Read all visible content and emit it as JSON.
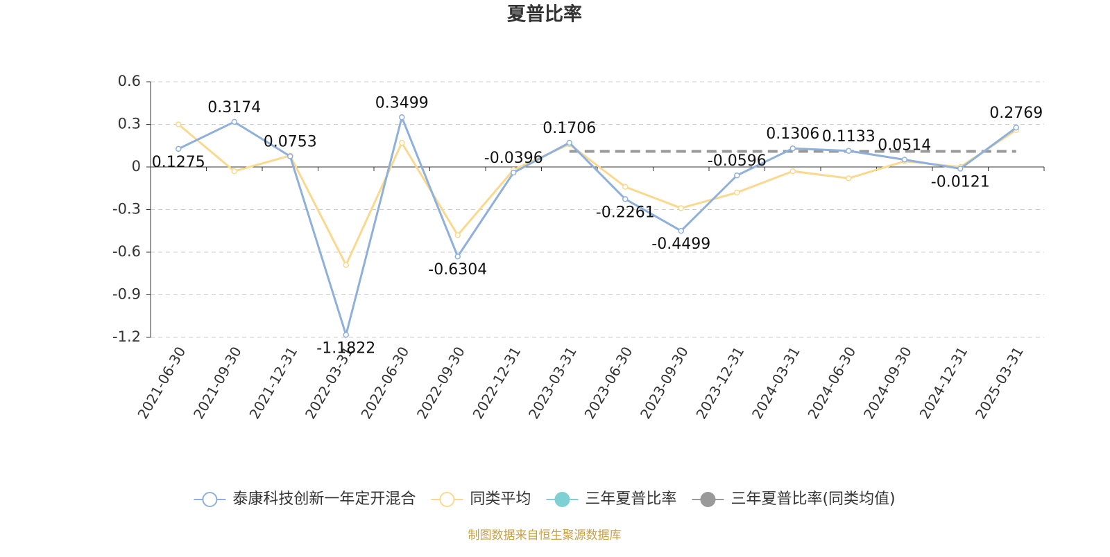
{
  "chart_data": {
    "type": "line",
    "title": "夏普比率",
    "categories": [
      "2021-06-30",
      "2021-09-30",
      "2021-12-31",
      "2022-03-31",
      "2022-06-30",
      "2022-09-30",
      "2022-12-31",
      "2023-03-31",
      "2023-06-30",
      "2023-09-30",
      "2023-12-31",
      "2024-03-31",
      "2024-06-30",
      "2024-09-30",
      "2024-12-31",
      "2025-03-31"
    ],
    "series": [
      {
        "name": "泰康科技创新一年定开混合",
        "color": "#8eb0db",
        "symbol": "emptyCircle",
        "data_labels": true,
        "values": [
          0.1275,
          0.3174,
          0.0753,
          -1.1822,
          0.3499,
          -0.6304,
          -0.0396,
          0.1706,
          -0.2261,
          -0.4499,
          -0.0596,
          0.1306,
          0.1133,
          0.0514,
          -0.0121,
          0.2769
        ]
      },
      {
        "name": "同类平均",
        "color": "#fad98f",
        "symbol": "emptyCircle",
        "values": [
          0.3,
          -0.03,
          0.08,
          -0.69,
          0.17,
          -0.48,
          -0.02,
          0.16,
          -0.14,
          -0.29,
          -0.18,
          -0.03,
          -0.08,
          0.04,
          0.0,
          0.26
        ]
      },
      {
        "name": "三年夏普比率",
        "color": "#7fd0d2",
        "symbol": "circle",
        "values": [
          null,
          null,
          null,
          null,
          null,
          null,
          null,
          null,
          null,
          null,
          null,
          null,
          null,
          null,
          null,
          null
        ]
      },
      {
        "name": "三年夏普比率(同类均值)",
        "color": "#999999",
        "symbol": "circle",
        "dashed": true,
        "values": [
          null,
          null,
          null,
          null,
          null,
          null,
          null,
          0.11,
          0.11,
          0.11,
          0.11,
          0.11,
          0.11,
          0.11,
          0.11,
          0.11
        ]
      }
    ],
    "ylim": [
      -1.2,
      0.6
    ],
    "yticks": [
      -1.2,
      -0.9,
      -0.6,
      -0.3,
      0,
      0.3,
      0.6
    ],
    "grid": true,
    "legend": "bottom",
    "source": "制图数据来自恒生聚源数据库"
  }
}
